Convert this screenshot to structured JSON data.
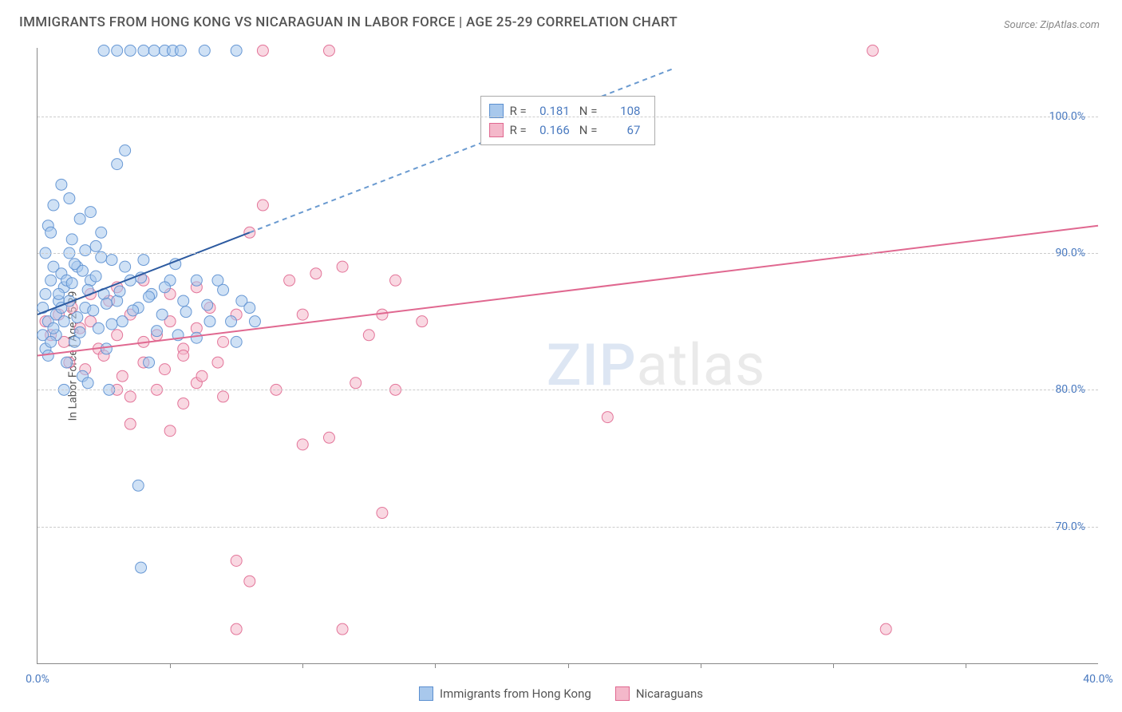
{
  "title": "IMMIGRANTS FROM HONG KONG VS NICARAGUAN IN LABOR FORCE | AGE 25-29 CORRELATION CHART",
  "source": "Source: ZipAtlas.com",
  "y_axis_label": "In Labor Force | Age 25-29",
  "watermark": {
    "part1": "ZIP",
    "part2": "atlas"
  },
  "chart": {
    "type": "scatter",
    "background_color": "#ffffff",
    "grid_color": "#cccccc",
    "axis_color": "#888888",
    "tick_label_color": "#4a7ac0",
    "xlim": [
      0,
      40
    ],
    "ylim": [
      60,
      105
    ],
    "x_ticks": [
      0,
      40
    ],
    "x_tick_labels": [
      "0.0%",
      "40.0%"
    ],
    "x_minor_ticks": [
      5,
      10,
      15,
      20,
      25,
      30,
      35
    ],
    "y_grid": [
      70,
      80,
      90,
      100
    ],
    "y_tick_labels": [
      "70.0%",
      "80.0%",
      "90.0%",
      "100.0%"
    ],
    "marker_radius": 7,
    "marker_opacity": 0.55,
    "marker_stroke_opacity": 0.9,
    "line_width": 2
  },
  "series": [
    {
      "id": "hk",
      "name": "Immigrants from Hong Kong",
      "color": "#7aa8de",
      "fill": "#a8c8ec",
      "stroke": "#5b8fd0",
      "R": "0.181",
      "N": "108",
      "trend_solid": {
        "x1": 0,
        "y1": 85.5,
        "x2": 8,
        "y2": 91.5
      },
      "trend_dashed": {
        "x1": 8,
        "y1": 91.5,
        "x2": 24,
        "y2": 103.5
      },
      "points": [
        [
          0.2,
          86
        ],
        [
          0.3,
          87
        ],
        [
          0.5,
          88
        ],
        [
          0.4,
          85
        ],
        [
          0.6,
          89
        ],
        [
          0.8,
          86.5
        ],
        [
          1.0,
          87.5
        ],
        [
          1.2,
          90
        ],
        [
          0.7,
          84
        ],
        [
          0.9,
          88.5
        ],
        [
          1.5,
          89
        ],
        [
          1.3,
          91
        ],
        [
          1.8,
          86
        ],
        [
          2.0,
          88
        ],
        [
          2.2,
          90.5
        ],
        [
          2.5,
          87
        ],
        [
          2.8,
          89.5
        ],
        [
          3.0,
          86.5
        ],
        [
          1.1,
          82
        ],
        [
          1.4,
          83.5
        ],
        [
          1.7,
          81
        ],
        [
          2.3,
          84.5
        ],
        [
          2.6,
          83
        ],
        [
          3.2,
          85
        ],
        [
          3.5,
          88
        ],
        [
          3.8,
          86
        ],
        [
          4.0,
          89.5
        ],
        [
          4.3,
          87
        ],
        [
          4.7,
          85.5
        ],
        [
          5.0,
          88
        ],
        [
          5.3,
          84
        ],
        [
          5.5,
          86.5
        ],
        [
          6.0,
          88
        ],
        [
          6.5,
          85
        ],
        [
          0.4,
          92
        ],
        [
          0.6,
          93.5
        ],
        [
          0.9,
          95
        ],
        [
          1.2,
          94
        ],
        [
          1.6,
          92.5
        ],
        [
          2.0,
          93
        ],
        [
          2.4,
          91.5
        ],
        [
          3.0,
          96.5
        ],
        [
          3.3,
          97.5
        ],
        [
          1.0,
          80
        ],
        [
          1.9,
          80.5
        ],
        [
          2.7,
          80
        ],
        [
          4.2,
          82
        ],
        [
          0.3,
          90
        ],
        [
          0.5,
          91.5
        ],
        [
          2.5,
          104.8
        ],
        [
          3.0,
          104.8
        ],
        [
          3.5,
          104.8
        ],
        [
          4.0,
          104.8
        ],
        [
          4.4,
          104.8
        ],
        [
          4.8,
          104.8
        ],
        [
          5.1,
          104.8
        ],
        [
          5.4,
          104.8
        ],
        [
          6.3,
          104.8
        ],
        [
          7.5,
          104.8
        ],
        [
          3.8,
          73
        ],
        [
          3.9,
          67
        ],
        [
          0.2,
          84
        ],
        [
          0.3,
          83
        ],
        [
          0.4,
          82.5
        ],
        [
          0.5,
          83.5
        ],
        [
          0.6,
          84.5
        ],
        [
          0.7,
          85.5
        ],
        [
          0.8,
          87
        ],
        [
          0.9,
          86
        ],
        [
          1.0,
          85
        ],
        [
          1.1,
          88
        ],
        [
          1.2,
          86.5
        ],
        [
          1.3,
          87.8
        ],
        [
          1.4,
          89.2
        ],
        [
          1.5,
          85.3
        ],
        [
          1.6,
          84.2
        ],
        [
          1.7,
          88.7
        ],
        [
          1.8,
          90.2
        ],
        [
          1.9,
          87.3
        ],
        [
          2.1,
          85.8
        ],
        [
          2.2,
          88.3
        ],
        [
          2.4,
          89.7
        ],
        [
          2.6,
          86.3
        ],
        [
          2.8,
          84.8
        ],
        [
          3.1,
          87.2
        ],
        [
          3.3,
          89.0
        ],
        [
          3.6,
          85.8
        ],
        [
          3.9,
          88.2
        ],
        [
          4.2,
          86.8
        ],
        [
          4.5,
          84.3
        ],
        [
          4.8,
          87.5
        ],
        [
          5.2,
          89.2
        ],
        [
          5.6,
          85.7
        ],
        [
          6.0,
          83.8
        ],
        [
          6.4,
          86.2
        ],
        [
          6.8,
          88.0
        ],
        [
          7.0,
          87.3
        ],
        [
          7.3,
          85.0
        ],
        [
          7.7,
          86.5
        ],
        [
          7.5,
          83.5
        ],
        [
          8.0,
          86
        ],
        [
          8.2,
          85
        ]
      ]
    },
    {
      "id": "nic",
      "name": "Nicaraguans",
      "color": "#e890ac",
      "fill": "#f4b8ca",
      "stroke": "#e06890",
      "R": "0.166",
      "N": "67",
      "trend_solid": {
        "x1": 0,
        "y1": 82.5,
        "x2": 40,
        "y2": 92
      },
      "points": [
        [
          0.3,
          85
        ],
        [
          0.5,
          84
        ],
        [
          0.8,
          85.5
        ],
        [
          1.0,
          83.5
        ],
        [
          1.3,
          86
        ],
        [
          1.6,
          84.5
        ],
        [
          2.0,
          85
        ],
        [
          2.3,
          83
        ],
        [
          2.7,
          86.5
        ],
        [
          3.0,
          84
        ],
        [
          3.5,
          85.5
        ],
        [
          4.0,
          83.5
        ],
        [
          4.5,
          84
        ],
        [
          5.0,
          85
        ],
        [
          5.5,
          83
        ],
        [
          6.0,
          84.5
        ],
        [
          6.5,
          86
        ],
        [
          7.0,
          83.5
        ],
        [
          7.5,
          85.5
        ],
        [
          3.0,
          80
        ],
        [
          3.5,
          79.5
        ],
        [
          4.5,
          80
        ],
        [
          5.5,
          79
        ],
        [
          6.0,
          80.5
        ],
        [
          7.0,
          79.5
        ],
        [
          3.5,
          77.5
        ],
        [
          5.0,
          77
        ],
        [
          7.5,
          67.5
        ],
        [
          8.0,
          66
        ],
        [
          10.5,
          88.5
        ],
        [
          11.0,
          104.8
        ],
        [
          13.0,
          85.5
        ],
        [
          13.5,
          88
        ],
        [
          14.5,
          85
        ],
        [
          11.5,
          89
        ],
        [
          12.0,
          80.5
        ],
        [
          12.5,
          84
        ],
        [
          13.5,
          80
        ],
        [
          10.0,
          76
        ],
        [
          11.0,
          76.5
        ],
        [
          11.5,
          62.5
        ],
        [
          13.0,
          71
        ],
        [
          8.5,
          93.5
        ],
        [
          8.0,
          91.5
        ],
        [
          9.5,
          88
        ],
        [
          10.0,
          85.5
        ],
        [
          9.0,
          80
        ],
        [
          7.5,
          62.5
        ],
        [
          8.5,
          104.8
        ],
        [
          21.5,
          78
        ],
        [
          31.5,
          104.8
        ],
        [
          32.0,
          62.5
        ],
        [
          1.2,
          82
        ],
        [
          1.8,
          81.5
        ],
        [
          2.5,
          82.5
        ],
        [
          3.2,
          81
        ],
        [
          4.0,
          82
        ],
        [
          4.8,
          81.5
        ],
        [
          5.5,
          82.5
        ],
        [
          6.2,
          81
        ],
        [
          6.8,
          82
        ],
        [
          2.0,
          87
        ],
        [
          3.0,
          87.5
        ],
        [
          4.0,
          88
        ],
        [
          5.0,
          87
        ],
        [
          6.0,
          87.5
        ]
      ]
    }
  ],
  "stats_legend": {
    "rows": [
      {
        "series": "hk",
        "r_label": "R =",
        "r_val": "0.181",
        "n_label": "N =",
        "n_val": "108"
      },
      {
        "series": "nic",
        "r_label": "R =",
        "r_val": "0.166",
        "n_label": "N =",
        "n_val": "67"
      }
    ]
  }
}
